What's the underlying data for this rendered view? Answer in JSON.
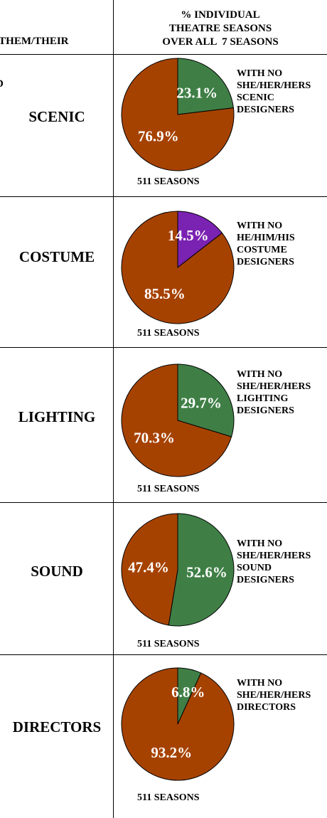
{
  "header": {
    "left_lines": [
      "/THEM/THEIR",
      "D"
    ],
    "right_lines": [
      "% INDIVIDUAL",
      "THEATRE SEASONS",
      "OVER ALL  7 SEASONS"
    ]
  },
  "colors": {
    "primary_slice": "#a64200",
    "green_slice": "#3f7f46",
    "purple_slice": "#7a22b2",
    "border": "#000000",
    "background": "#ffffff"
  },
  "chart_data": [
    {
      "type": "pie",
      "row_label": "SCENIC",
      "slices": [
        {
          "label": "23.1%",
          "value": 23.1,
          "color": "#3f7f46"
        },
        {
          "label": "76.9%",
          "value": 76.9,
          "color": "#a64200"
        }
      ],
      "side_label": [
        "WITH NO",
        "SHE/HER/HERS",
        "SCENIC",
        "DESIGNERS"
      ],
      "note": "511 SEASONS"
    },
    {
      "type": "pie",
      "row_label": "COSTUME",
      "slices": [
        {
          "label": "14.5%",
          "value": 14.5,
          "color": "#7a22b2"
        },
        {
          "label": "85.5%",
          "value": 85.5,
          "color": "#a64200"
        }
      ],
      "side_label": [
        "WITH NO",
        "HE/HIM/HIS",
        "COSTUME",
        "DESIGNERS"
      ],
      "note": "511 SEASONS"
    },
    {
      "type": "pie",
      "row_label": "LIGHTING",
      "slices": [
        {
          "label": "29.7%",
          "value": 29.7,
          "color": "#3f7f46"
        },
        {
          "label": "70.3%",
          "value": 70.3,
          "color": "#a64200"
        }
      ],
      "side_label": [
        "WITH NO",
        "SHE/HER/HERS",
        "LIGHTING",
        "DESIGNERS"
      ],
      "note": "511 SEASONS"
    },
    {
      "type": "pie",
      "row_label": "SOUND",
      "slices": [
        {
          "label": "52.6%",
          "value": 52.6,
          "color": "#3f7f46"
        },
        {
          "label": "47.4%",
          "value": 47.4,
          "color": "#a64200"
        }
      ],
      "side_label": [
        "WITH NO",
        "SHE/HER/HERS",
        "SOUND",
        "DESIGNERS"
      ],
      "note": "511 SEASONS"
    },
    {
      "type": "pie",
      "row_label": "DIRECTORS",
      "slices": [
        {
          "label": "6.8%",
          "value": 6.8,
          "color": "#3f7f46"
        },
        {
          "label": "93.2%",
          "value": 93.2,
          "color": "#a64200"
        }
      ],
      "side_label": [
        "WITH NO",
        "SHE/HER/HERS",
        "DIRECTORS"
      ],
      "note": "511 SEASONS"
    }
  ]
}
